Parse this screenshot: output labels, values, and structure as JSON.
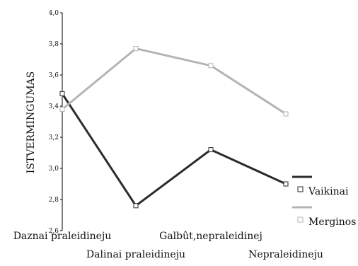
{
  "chart_data": {
    "type": "line",
    "ylabel": "ISTVERMINGUMAS",
    "xlabel": "",
    "ylim": [
      2.6,
      4.0
    ],
    "yticks": [
      2.6,
      2.8,
      3.0,
      3.2,
      3.4,
      3.6,
      3.8,
      4.0
    ],
    "ytick_labels": [
      "2,6",
      "2,8",
      "3,0",
      "3,2",
      "3,4",
      "3,6",
      "3,8",
      "4,0"
    ],
    "categories": [
      "Daznai praleidineju",
      "Dalinai praleidineju",
      "Galbût,nepraleidinej",
      "Nepraleidineju"
    ],
    "series": [
      {
        "name": "Vaikinai",
        "color": "#2b2b2b",
        "marker": "square",
        "values": [
          3.48,
          2.76,
          3.12,
          2.9
        ]
      },
      {
        "name": "Merginos",
        "color": "#b4b4b4",
        "marker": "square",
        "values": [
          3.38,
          3.77,
          3.66,
          3.35
        ]
      }
    ],
    "grid": false,
    "legend": "right"
  }
}
